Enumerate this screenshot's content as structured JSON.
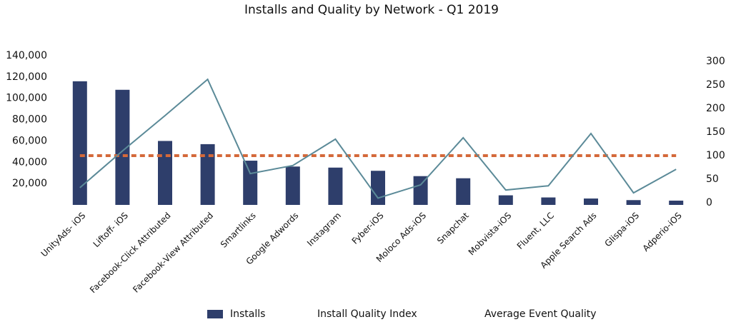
{
  "chart_data": {
    "type": "bar-line",
    "title": "Installs and Quality by Network - Q1 2019",
    "categories": [
      "UnityAds- iOS",
      "Liftoff- iOS",
      "Facebook-Click Attributed",
      "Facebook-View Attributed",
      "Smartlinks",
      "Google Adwords",
      "Instagram",
      "Fyber-iOS",
      "Moloco Ads-iOS",
      "Snapchat",
      "Mobvista-iOS",
      "Fluent, LLC",
      "Apple Search Ads",
      "Glispa-iOS",
      "Adperio-iOS"
    ],
    "series": [
      {
        "name": "Installs",
        "type": "bar",
        "color": "#2e3e6b",
        "values": [
          116000,
          108000,
          60000,
          57000,
          41500,
          36000,
          35000,
          32000,
          27000,
          25000,
          9000,
          7000,
          6000,
          4500,
          4000
        ]
      },
      {
        "name": "Install Quality Index",
        "type": "line",
        "dashed": true,
        "axis": "y2",
        "color": "#d4693a",
        "values": [
          100,
          100,
          100,
          100,
          100,
          100,
          100,
          100,
          100,
          100,
          100,
          100,
          100,
          100,
          100
        ]
      },
      {
        "name": "Average Event Quality",
        "type": "line",
        "axis": "y2",
        "color": "#5b8a98",
        "values": [
          32,
          110,
          185,
          262,
          62,
          79,
          135,
          10,
          38,
          138,
          27,
          36,
          147,
          21,
          71
        ]
      }
    ],
    "ylim": [
      0,
      140000
    ],
    "yticks": [
      {
        "value": 20000,
        "label": "20,000"
      },
      {
        "value": 40000,
        "label": "40,000"
      },
      {
        "value": 60000,
        "label": "60,000"
      },
      {
        "value": 80000,
        "label": "80,000"
      },
      {
        "value": 100000,
        "label": "100,000"
      },
      {
        "value": 120000,
        "label": "120,000"
      },
      {
        "value": 140000,
        "label": "140,000"
      }
    ],
    "y2lim": [
      0,
      300
    ],
    "y2ticks": [
      0,
      50,
      100,
      150,
      200,
      250,
      300
    ]
  }
}
